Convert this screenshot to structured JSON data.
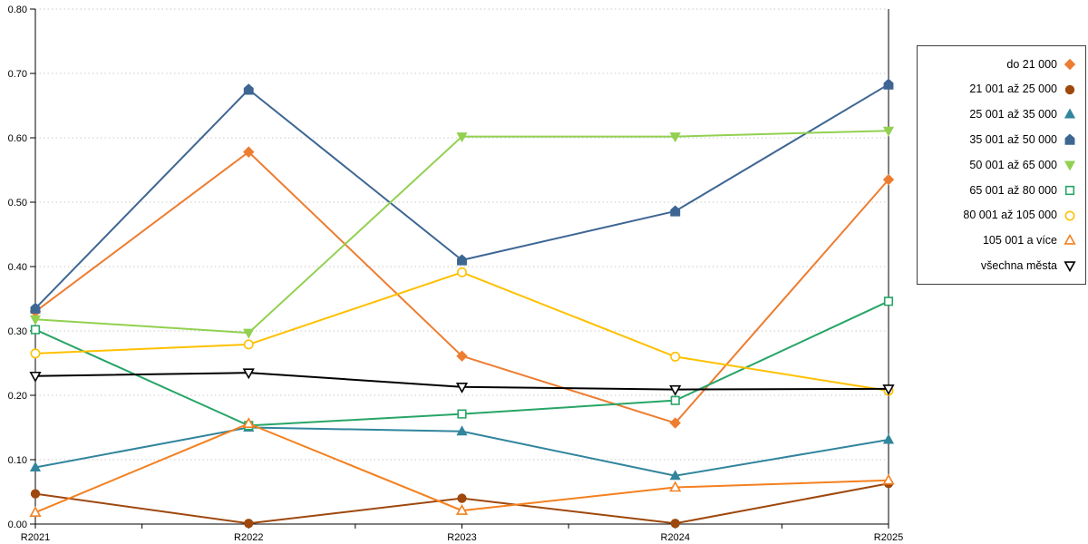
{
  "chart_data": {
    "type": "line",
    "title": "",
    "xlabel": "",
    "ylabel": "",
    "grid": "horizontal-dotted",
    "grid_color": "#c9c9c9",
    "axis_color": "#000000",
    "legend_position": "right",
    "x_categories": [
      "R2021",
      "R2022",
      "R2023",
      "R2024",
      "R2025"
    ],
    "y_axis": {
      "min": 0.0,
      "max": 0.8,
      "step": 0.1,
      "tick_labels": [
        "0.00",
        "0.10",
        "0.20",
        "0.30",
        "0.40",
        "0.50",
        "0.60",
        "0.70",
        "0.80"
      ]
    },
    "series": [
      {
        "name": "do 21 000",
        "color": "#ED7D31",
        "marker": "diamond",
        "filled": true,
        "values": [
          0.33,
          0.578,
          0.261,
          0.157,
          0.535
        ]
      },
      {
        "name": "21 001 až 25 000",
        "color": "#9E480E",
        "marker": "circle",
        "filled": true,
        "values": [
          0.047,
          0.001,
          0.04,
          0.001,
          0.063
        ]
      },
      {
        "name": "25 001 až 35 000",
        "color": "#31859C",
        "marker": "triangle",
        "filled": true,
        "values": [
          0.088,
          0.15,
          0.144,
          0.075,
          0.131
        ]
      },
      {
        "name": "35 001 až 50 000",
        "color": "#3E6693",
        "marker": "pentagon",
        "filled": true,
        "values": [
          0.335,
          0.675,
          0.41,
          0.486,
          0.683
        ]
      },
      {
        "name": "50 001 až 65 000",
        "color": "#92D050",
        "marker": "triangle-down",
        "filled": true,
        "values": [
          0.318,
          0.297,
          0.602,
          0.602,
          0.611
        ]
      },
      {
        "name": "65 001 až 80 000",
        "color": "#27A567",
        "marker": "square",
        "filled": false,
        "values": [
          0.302,
          0.153,
          0.171,
          0.192,
          0.346
        ]
      },
      {
        "name": "80 001 až 105 000",
        "color": "#FFC000",
        "marker": "circle",
        "filled": false,
        "values": [
          0.265,
          0.279,
          0.391,
          0.26,
          0.207
        ]
      },
      {
        "name": "105 001 a více",
        "color": "#F4801F",
        "marker": "triangle",
        "filled": false,
        "values": [
          0.018,
          0.156,
          0.021,
          0.057,
          0.068
        ]
      },
      {
        "name": "všechna města",
        "color": "#000000",
        "marker": "triangle-down",
        "filled": false,
        "values": [
          0.23,
          0.235,
          0.213,
          0.209,
          0.21
        ]
      }
    ]
  }
}
